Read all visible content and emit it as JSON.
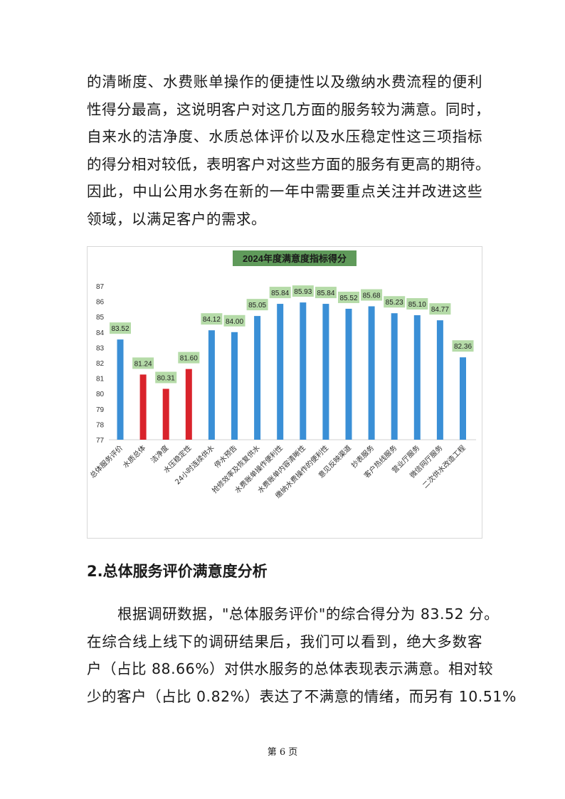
{
  "body_lines_1": [
    "的清晰度、水费账单操作的便捷性以及缴纳水费流程的便利",
    "性得分最高，这说明客户对这几方面的服务较为满意。同时，",
    "自来水的洁净度、水质总体评价以及水压稳定性这三项指标",
    "的得分相对较低，表明客户对这些方面的服务有更高的期待。",
    "因此，中山公用水务在新的一年中需要重点关注并改进这些",
    "领域，以满足客户的需求。"
  ],
  "section_heading": "2.总体服务评价满意度分析",
  "body_lines_2": [
    "根据调研数据，\"总体服务评价\"的综合得分为 83.52 分。",
    "在综合线上线下的调研结果后，我们可以看到，绝大多数客",
    "户（占比 88.66%）对供水服务的总体表现表示满意。相对较",
    "少的客户（占比 0.82%）表达了不满意的情绪，而另有 10.51%"
  ],
  "footer": "第 6 页",
  "chart_data": {
    "type": "bar",
    "title": "2024年度满意度指标得分",
    "categories": [
      "总体服务评价",
      "水质总体",
      "洁净度",
      "水压稳定性",
      "24小时连续供水",
      "停水预告",
      "抢修效率及恢复供水",
      "水费账单操作便利性",
      "水费账单内容清晰性",
      "缴纳水费操作的便利性",
      "意见反映渠道",
      "抄表服务",
      "客户热线服务",
      "营业厅服务",
      "微信网厅服务",
      "二次供水改造工程"
    ],
    "values": [
      83.52,
      81.24,
      80.31,
      81.6,
      84.12,
      84.0,
      85.05,
      85.84,
      85.93,
      85.84,
      85.52,
      85.68,
      85.23,
      85.1,
      84.77,
      82.36
    ],
    "data_labels": [
      "83.52",
      "81.24",
      "80.31",
      "81.60",
      "84.12",
      "84.00",
      "85.05",
      "85.84",
      "85.93",
      "85.84",
      "85.52",
      "85.68",
      "85.23",
      "85.10",
      "84.77",
      "82.36"
    ],
    "highlighted": [
      false,
      true,
      true,
      true,
      false,
      false,
      false,
      false,
      false,
      false,
      false,
      false,
      false,
      false,
      false,
      false
    ],
    "ylim": [
      77,
      87
    ],
    "yticks": [
      "77",
      "78",
      "79",
      "80",
      "81",
      "82",
      "83",
      "84",
      "85",
      "86",
      "87"
    ],
    "grid": false,
    "colors": {
      "bar": "#3a8fd6",
      "highlight": "#d9232b",
      "label_bg": "#b5dba8",
      "title_bg": "#5f9a5a"
    }
  }
}
